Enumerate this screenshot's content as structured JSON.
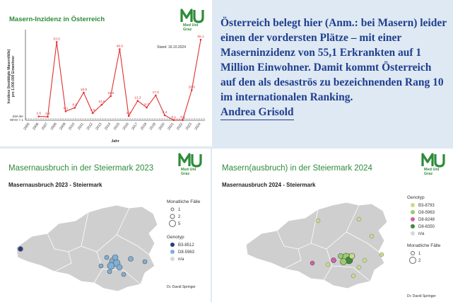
{
  "top_left": {
    "title": "Masern-Inzidenz in Österreich",
    "stand": "Stand: 16.10.2024",
    "logo": {
      "line1": "Med Uni",
      "line2": "Graz"
    }
  },
  "quote": {
    "text": "Österreich belegt hier (Anm.: bei Masern) leider einen der vordersten Plätze – mit einer Maserninzidenz von 55,1 Erkrankten auf 1 Million Einwohner. Damit kommt Österreich auf den als desaströs zu bezeichnenden Rang 10 im internationalen Ranking.",
    "author": "Andrea Grisold"
  },
  "map_2023": {
    "title": "Masernausbruch in der Steiermark 2023",
    "subtitle": "Masernausbruch 2023 - Steiermark",
    "legend_cases_title": "Monatliche Fälle",
    "cases_levels": [
      "1",
      "2",
      "5"
    ],
    "legend_genotype_title": "Genotyp",
    "genotypes": [
      {
        "label": "B3-8512",
        "color": "#2b3d7a"
      },
      {
        "label": "D8-5963",
        "color": "#7fb0d8"
      },
      {
        "label": "n/a",
        "color": "#d9d9d9"
      }
    ],
    "credit": "Dr. David Springer",
    "logo": {
      "line1": "Med Uni",
      "line2": "Graz"
    }
  },
  "map_2024": {
    "title": "Masern(ausbruch) in der Steiermark 2024",
    "subtitle": "Masernausbruch 2024 - Steiermark",
    "legend_genotype_title": "Genotyp",
    "genotypes": [
      {
        "label": "B3-8793",
        "color": "#c7dc8a"
      },
      {
        "label": "D8-5963",
        "color": "#9acb6a"
      },
      {
        "label": "D8-8248",
        "color": "#d460a8"
      },
      {
        "label": "D8-8350",
        "color": "#3c8b3a"
      },
      {
        "label": "n/a",
        "color": "#d9d9d9"
      }
    ],
    "legend_cases_title": "Monatliche Fälle",
    "cases_levels": [
      "1",
      "2"
    ],
    "credit": "Dr. David Springer",
    "logo": {
      "line1": "Med Uni",
      "line2": "Graz"
    }
  },
  "chart_data": {
    "type": "line",
    "title": "Masern-Inzidenz in Österreich",
    "xlabel": "Jahr",
    "ylabel": "Inzidenz (bestätigte Masernfälle) pro 1.000.000 Einwohner",
    "x": [
      "2005",
      "2006",
      "2007",
      "2008",
      "2009",
      "2010",
      "2011",
      "2012",
      "2013",
      "2014",
      "2015",
      "2016",
      "2017",
      "2018",
      "2019",
      "2020",
      "2021",
      "2022",
      "2023",
      "2024"
    ],
    "series": [
      {
        "values": [
          null,
          2.6,
          2.4,
          53.5,
          6.1,
          8.5,
          18.9,
          4.9,
          10.6,
          16.5,
          48.6,
          2.9,
          13.3,
          8.7,
          17.0,
          3.4,
          0.1,
          0.1,
          20.6,
          55.1
        ],
        "color": "#e03030"
      }
    ],
    "data_labels": [
      "",
      "2.6",
      "2.4",
      "53.5",
      "6.1",
      "8.5",
      "18.9",
      "4.9",
      "10.6",
      "16.5",
      "48.6",
      "2.9",
      "13.3",
      "8.7",
      "17.0",
      "3.4",
      "0.1",
      "0.1",
      "20.6",
      "55.1"
    ],
    "reference_label": "Ziel der WHO < 1",
    "ylim": [
      0,
      60
    ],
    "grid": false
  }
}
